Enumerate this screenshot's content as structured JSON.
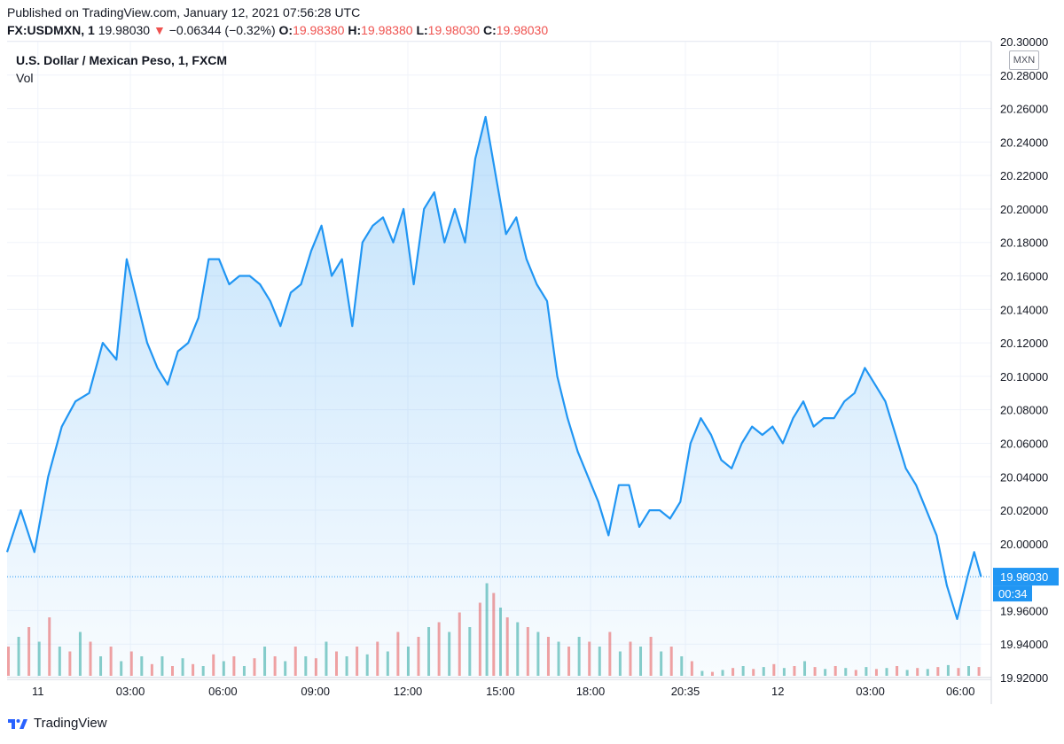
{
  "header": {
    "published": "Published on TradingView.com, January 12, 2021 07:56:28 UTC"
  },
  "ohlc": {
    "symbol": "FX:USDMXN, 1",
    "price": "19.98030",
    "arrow": "▼",
    "change": "−0.06344 (−0.32%)",
    "o_label": "O:",
    "o_value": "19.98380",
    "h_label": "H:",
    "h_value": "19.98380",
    "l_label": "L:",
    "l_value": "19.98030",
    "c_label": "C:",
    "c_value": "19.98030"
  },
  "legend": {
    "title": "U.S. Dollar / Mexican Peso, 1, FXCM",
    "vol": "Vol"
  },
  "currency": "MXN",
  "footer": {
    "brand": "TradingView"
  },
  "colors": {
    "line": "#2196f3",
    "up_volume": "#26a69a",
    "down_volume": "#ef5350",
    "last_price_label": "#2196f3"
  },
  "chart_data": {
    "type": "area",
    "title": "U.S. Dollar / Mexican Peso, 1, FXCM",
    "ylim": [
      19.92,
      20.3
    ],
    "y_ticks": [
      "20.30000",
      "20.28000",
      "20.26000",
      "20.24000",
      "20.22000",
      "20.20000",
      "20.18000",
      "20.16000",
      "20.14000",
      "20.12000",
      "20.10000",
      "20.08000",
      "20.06000",
      "20.04000",
      "20.02000",
      "20.00000",
      "19.96000",
      "19.94000",
      "19.92000"
    ],
    "x_ticks": [
      "11",
      "03:00",
      "06:00",
      "09:00",
      "12:00",
      "15:00",
      "18:00",
      "20:35",
      "12",
      "03:00",
      "06:00"
    ],
    "last_price": "19.98030",
    "countdown": "00:34",
    "series": [
      {
        "values": [
          [
            0,
            19.995
          ],
          [
            0.4,
            20.02
          ],
          [
            0.8,
            19.995
          ],
          [
            1.2,
            20.04
          ],
          [
            1.6,
            20.07
          ],
          [
            2.0,
            20.085
          ],
          [
            2.4,
            20.09
          ],
          [
            2.8,
            20.12
          ],
          [
            3.2,
            20.11
          ],
          [
            3.5,
            20.17
          ],
          [
            3.8,
            20.145
          ],
          [
            4.1,
            20.12
          ],
          [
            4.4,
            20.105
          ],
          [
            4.7,
            20.095
          ],
          [
            5.0,
            20.115
          ],
          [
            5.3,
            20.12
          ],
          [
            5.6,
            20.135
          ],
          [
            5.9,
            20.17
          ],
          [
            6.2,
            20.17
          ],
          [
            6.5,
            20.155
          ],
          [
            6.8,
            20.16
          ],
          [
            7.1,
            20.16
          ],
          [
            7.4,
            20.155
          ],
          [
            7.7,
            20.145
          ],
          [
            8.0,
            20.13
          ],
          [
            8.3,
            20.15
          ],
          [
            8.6,
            20.155
          ],
          [
            8.9,
            20.175
          ],
          [
            9.2,
            20.19
          ],
          [
            9.5,
            20.16
          ],
          [
            9.8,
            20.17
          ],
          [
            10.1,
            20.13
          ],
          [
            10.4,
            20.18
          ],
          [
            10.7,
            20.19
          ],
          [
            11.0,
            20.195
          ],
          [
            11.3,
            20.18
          ],
          [
            11.6,
            20.2
          ],
          [
            11.9,
            20.155
          ],
          [
            12.2,
            20.2
          ],
          [
            12.5,
            20.21
          ],
          [
            12.8,
            20.18
          ],
          [
            13.1,
            20.2
          ],
          [
            13.4,
            20.18
          ],
          [
            13.7,
            20.23
          ],
          [
            14.0,
            20.255
          ],
          [
            14.3,
            20.22
          ],
          [
            14.6,
            20.185
          ],
          [
            14.9,
            20.195
          ],
          [
            15.2,
            20.17
          ],
          [
            15.5,
            20.155
          ],
          [
            15.8,
            20.145
          ],
          [
            16.1,
            20.1
          ],
          [
            16.4,
            20.075
          ],
          [
            16.7,
            20.055
          ],
          [
            17.0,
            20.04
          ],
          [
            17.3,
            20.025
          ],
          [
            17.6,
            20.005
          ],
          [
            17.9,
            20.035
          ],
          [
            18.2,
            20.035
          ],
          [
            18.5,
            20.01
          ],
          [
            18.8,
            20.02
          ],
          [
            19.1,
            20.02
          ],
          [
            19.4,
            20.015
          ],
          [
            19.7,
            20.025
          ],
          [
            20.0,
            20.06
          ],
          [
            20.3,
            20.075
          ],
          [
            20.6,
            20.065
          ],
          [
            20.9,
            20.05
          ],
          [
            21.2,
            20.045
          ],
          [
            21.5,
            20.06
          ],
          [
            21.8,
            20.07
          ],
          [
            22.1,
            20.065
          ],
          [
            22.4,
            20.07
          ],
          [
            22.7,
            20.06
          ],
          [
            23.0,
            20.075
          ],
          [
            23.3,
            20.085
          ],
          [
            23.6,
            20.07
          ],
          [
            23.9,
            20.075
          ],
          [
            24.2,
            20.075
          ],
          [
            24.5,
            20.085
          ],
          [
            24.8,
            20.09
          ],
          [
            25.1,
            20.105
          ],
          [
            25.4,
            20.095
          ],
          [
            25.7,
            20.085
          ],
          [
            26.0,
            20.065
          ],
          [
            26.3,
            20.045
          ],
          [
            26.6,
            20.035
          ],
          [
            26.9,
            20.02
          ],
          [
            27.2,
            20.005
          ],
          [
            27.5,
            19.975
          ],
          [
            27.8,
            19.955
          ],
          [
            28.1,
            19.98
          ],
          [
            28.3,
            19.995
          ],
          [
            28.5,
            19.9803
          ]
        ]
      }
    ],
    "volume": {
      "values": [
        [
          0,
          0.3,
          "down"
        ],
        [
          0.3,
          0.4,
          "up"
        ],
        [
          0.6,
          0.5,
          "down"
        ],
        [
          0.9,
          0.35,
          "up"
        ],
        [
          1.2,
          0.6,
          "down"
        ],
        [
          1.5,
          0.3,
          "up"
        ],
        [
          1.8,
          0.25,
          "down"
        ],
        [
          2.1,
          0.45,
          "up"
        ],
        [
          2.4,
          0.35,
          "down"
        ],
        [
          2.7,
          0.2,
          "up"
        ],
        [
          3.0,
          0.3,
          "down"
        ],
        [
          3.3,
          0.15,
          "up"
        ],
        [
          3.6,
          0.25,
          "down"
        ],
        [
          3.9,
          0.2,
          "up"
        ],
        [
          4.2,
          0.12,
          "down"
        ],
        [
          4.5,
          0.2,
          "up"
        ],
        [
          4.8,
          0.1,
          "down"
        ],
        [
          5.1,
          0.18,
          "up"
        ],
        [
          5.4,
          0.12,
          "down"
        ],
        [
          5.7,
          0.1,
          "up"
        ],
        [
          6.0,
          0.22,
          "down"
        ],
        [
          6.3,
          0.15,
          "up"
        ],
        [
          6.6,
          0.2,
          "down"
        ],
        [
          6.9,
          0.1,
          "up"
        ],
        [
          7.2,
          0.18,
          "down"
        ],
        [
          7.5,
          0.3,
          "up"
        ],
        [
          7.8,
          0.2,
          "down"
        ],
        [
          8.1,
          0.15,
          "up"
        ],
        [
          8.4,
          0.3,
          "down"
        ],
        [
          8.7,
          0.2,
          "up"
        ],
        [
          9.0,
          0.18,
          "down"
        ],
        [
          9.3,
          0.35,
          "up"
        ],
        [
          9.6,
          0.25,
          "down"
        ],
        [
          9.9,
          0.2,
          "up"
        ],
        [
          10.2,
          0.3,
          "down"
        ],
        [
          10.5,
          0.22,
          "up"
        ],
        [
          10.8,
          0.35,
          "down"
        ],
        [
          11.1,
          0.25,
          "up"
        ],
        [
          11.4,
          0.45,
          "down"
        ],
        [
          11.7,
          0.3,
          "up"
        ],
        [
          12.0,
          0.4,
          "down"
        ],
        [
          12.3,
          0.5,
          "up"
        ],
        [
          12.6,
          0.55,
          "down"
        ],
        [
          12.9,
          0.45,
          "up"
        ],
        [
          13.2,
          0.65,
          "down"
        ],
        [
          13.5,
          0.5,
          "up"
        ],
        [
          13.8,
          0.75,
          "down"
        ],
        [
          14.0,
          0.95,
          "up"
        ],
        [
          14.2,
          0.85,
          "down"
        ],
        [
          14.4,
          0.7,
          "up"
        ],
        [
          14.6,
          0.6,
          "down"
        ],
        [
          14.9,
          0.55,
          "up"
        ],
        [
          15.2,
          0.5,
          "down"
        ],
        [
          15.5,
          0.45,
          "up"
        ],
        [
          15.8,
          0.4,
          "down"
        ],
        [
          16.1,
          0.35,
          "up"
        ],
        [
          16.4,
          0.3,
          "down"
        ],
        [
          16.7,
          0.4,
          "up"
        ],
        [
          17.0,
          0.35,
          "down"
        ],
        [
          17.3,
          0.3,
          "up"
        ],
        [
          17.6,
          0.45,
          "down"
        ],
        [
          17.9,
          0.25,
          "up"
        ],
        [
          18.2,
          0.35,
          "down"
        ],
        [
          18.5,
          0.3,
          "up"
        ],
        [
          18.8,
          0.4,
          "down"
        ],
        [
          19.1,
          0.25,
          "up"
        ],
        [
          19.4,
          0.3,
          "down"
        ],
        [
          19.7,
          0.2,
          "up"
        ],
        [
          20.0,
          0.15,
          "down"
        ],
        [
          20.3,
          0.05,
          "up"
        ],
        [
          20.6,
          0.04,
          "down"
        ],
        [
          20.9,
          0.06,
          "up"
        ],
        [
          21.2,
          0.08,
          "down"
        ],
        [
          21.5,
          0.1,
          "up"
        ],
        [
          21.8,
          0.07,
          "down"
        ],
        [
          22.1,
          0.09,
          "up"
        ],
        [
          22.4,
          0.12,
          "down"
        ],
        [
          22.7,
          0.08,
          "up"
        ],
        [
          23.0,
          0.1,
          "down"
        ],
        [
          23.3,
          0.15,
          "up"
        ],
        [
          23.6,
          0.09,
          "down"
        ],
        [
          23.9,
          0.07,
          "up"
        ],
        [
          24.2,
          0.1,
          "down"
        ],
        [
          24.5,
          0.08,
          "up"
        ],
        [
          24.8,
          0.06,
          "down"
        ],
        [
          25.1,
          0.09,
          "up"
        ],
        [
          25.4,
          0.07,
          "down"
        ],
        [
          25.7,
          0.08,
          "up"
        ],
        [
          26.0,
          0.1,
          "down"
        ],
        [
          26.3,
          0.06,
          "up"
        ],
        [
          26.6,
          0.08,
          "down"
        ],
        [
          26.9,
          0.07,
          "up"
        ],
        [
          27.2,
          0.09,
          "down"
        ],
        [
          27.5,
          0.11,
          "up"
        ],
        [
          27.8,
          0.08,
          "down"
        ],
        [
          28.1,
          0.1,
          "up"
        ],
        [
          28.4,
          0.09,
          "down"
        ]
      ]
    },
    "grid": true
  }
}
